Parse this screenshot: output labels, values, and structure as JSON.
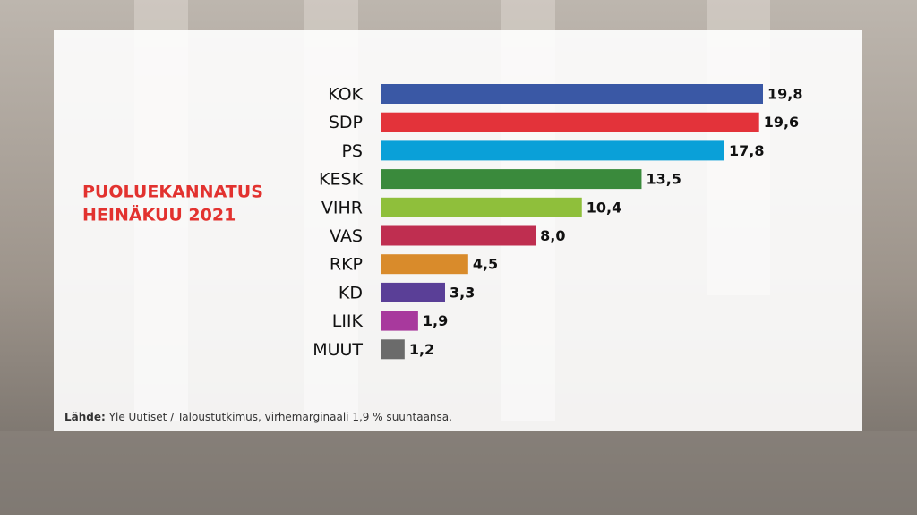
{
  "chart_data": {
    "type": "bar",
    "orientation": "horizontal",
    "title": "PUOLUEKANNATUS",
    "subtitle": "HEINÄKUU 2021",
    "categories": [
      "KOK",
      "SDP",
      "PS",
      "KESK",
      "VIHR",
      "VAS",
      "RKP",
      "KD",
      "LIIK",
      "MUUT"
    ],
    "values": [
      19.8,
      19.6,
      17.8,
      13.5,
      10.4,
      8.0,
      4.5,
      3.3,
      1.9,
      1.2
    ],
    "value_labels": [
      "19,8",
      "19,6",
      "17,8",
      "13,5",
      "10,4",
      "8,0",
      "4,5",
      "3,3",
      "1,9",
      "1,2"
    ],
    "colors": [
      "#3a58a5",
      "#e3333a",
      "#0aa0d8",
      "#3a8a3c",
      "#8fbf3b",
      "#bf2e50",
      "#d98b2b",
      "#5a3f97",
      "#a8399d",
      "#6b6b6b"
    ],
    "source_label": "Lähde:",
    "source": "Yle Uutiset / Taloustutkimus, virhemarginaali 1,9 % suuntaansa."
  }
}
